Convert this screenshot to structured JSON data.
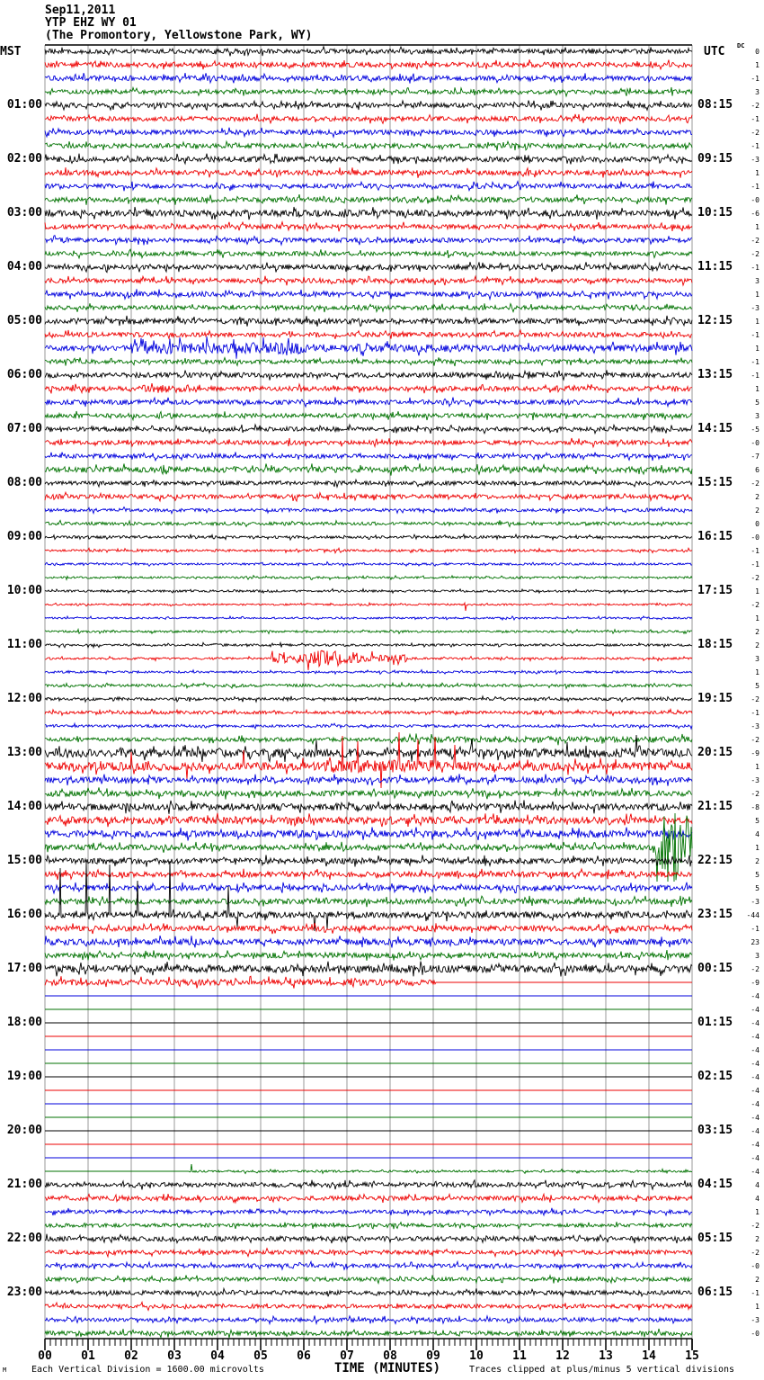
{
  "header": {
    "date": "Sep11,2011",
    "station": "YTP EHZ WY 01",
    "location": "(The Promontory, Yellowstone Park, WY)"
  },
  "left_axis": {
    "label": "MST",
    "times": [
      "01:00",
      "02:00",
      "03:00",
      "04:00",
      "05:00",
      "06:00",
      "07:00",
      "08:00",
      "09:00",
      "10:00",
      "11:00",
      "12:00",
      "13:00",
      "14:00",
      "15:00",
      "16:00",
      "17:00",
      "18:00",
      "19:00",
      "20:00",
      "21:00",
      "22:00",
      "23:00"
    ]
  },
  "right_axis": {
    "label": "UTC",
    "dc_header": "DC",
    "times": [
      "08:15",
      "09:15",
      "10:15",
      "11:15",
      "12:15",
      "13:15",
      "14:15",
      "15:15",
      "16:15",
      "17:15",
      "18:15",
      "19:15",
      "20:15",
      "21:15",
      "22:15",
      "23:15",
      "00:15",
      "01:15",
      "02:15",
      "03:15",
      "04:15",
      "05:15",
      "06:15"
    ],
    "dc_values": [
      "0",
      "1",
      "-1",
      "3",
      "-2",
      "-1",
      "-2",
      "-1",
      "-3",
      "1",
      "-1",
      "-0",
      "-6",
      "1",
      "-2",
      "-2",
      "-1",
      "3",
      "1",
      "-3",
      "1",
      "-1",
      "1",
      "-1",
      "-1",
      "1",
      "5",
      "3",
      "-5",
      "-0",
      "-7",
      "6",
      "-2",
      "2",
      "2",
      "0",
      "-0",
      "-1",
      "-1",
      "-2",
      "1",
      "-2",
      "1",
      "2",
      "2",
      "3",
      "1",
      "5",
      "-2",
      "-1",
      "-3",
      "-2",
      "-9",
      "1",
      "-3",
      "-2",
      "-8",
      "5",
      "4",
      "1",
      "2",
      "5",
      "5",
      "-3",
      "-44",
      "-1",
      "23",
      "3",
      "-2",
      "-9",
      "-4",
      "-4",
      "-4",
      "-4",
      "-4",
      "-4",
      "-4",
      "-4",
      "-4",
      "-4",
      "-4",
      "-4",
      "-4",
      "-4",
      "4",
      "4",
      "1",
      "-2",
      "2",
      "-2",
      "-0",
      "2",
      "-1",
      "1",
      "-3",
      "-0"
    ]
  },
  "x_axis": {
    "title": "TIME (MINUTES)",
    "labels": [
      "00",
      "01",
      "02",
      "03",
      "04",
      "05",
      "06",
      "07",
      "08",
      "09",
      "10",
      "11",
      "12",
      "13",
      "14",
      "15"
    ]
  },
  "footer": {
    "left": "Each Vertical Division = 1600.00 microvolts",
    "right": "Traces clipped at plus/minus 5 vertical divisions",
    "watermark": "M"
  },
  "chart_data": {
    "type": "line",
    "subtype": "seismogram-helicorder",
    "title": "YTP EHZ WY 01 webicorder, Sep11,2011",
    "xlabel": "TIME (MINUTES)",
    "x_range_minutes": [
      0,
      15
    ],
    "minutes_per_line": 15,
    "lines_per_hour": 4,
    "total_traces": 96,
    "grid": true,
    "colors": {
      "k": "#000000",
      "r": "#ee0000",
      "b": "#0000dd",
      "g": "#007200",
      "grid": "#999999"
    },
    "color_cycle_per_trace": [
      "black",
      "red",
      "blue",
      "green"
    ],
    "rows": [
      {
        "c": "k",
        "a": 2.6
      },
      {
        "c": "r",
        "a": 2.8
      },
      {
        "c": "b",
        "a": 2.8
      },
      {
        "c": "g",
        "a": 2.4
      },
      {
        "c": "k",
        "a": 2.6
      },
      {
        "c": "r",
        "a": 2.6
      },
      {
        "c": "b",
        "a": 2.6
      },
      {
        "c": "g",
        "a": 2.6
      },
      {
        "c": "k",
        "a": 3.0
      },
      {
        "c": "r",
        "a": 2.8
      },
      {
        "c": "b",
        "a": 2.6
      },
      {
        "c": "g",
        "a": 2.8
      },
      {
        "c": "k",
        "a": 3.6
      },
      {
        "c": "r",
        "a": 2.6
      },
      {
        "c": "b",
        "a": 2.6
      },
      {
        "c": "g",
        "a": 2.4
      },
      {
        "c": "k",
        "a": 2.8
      },
      {
        "c": "r",
        "a": 2.6
      },
      {
        "c": "b",
        "a": 2.8
      },
      {
        "c": "g",
        "a": 2.4
      },
      {
        "c": "k",
        "a": 3.0
      },
      {
        "c": "r",
        "a": 2.6
      },
      {
        "c": "b",
        "a": 3.0,
        "ev": [
          [
            2.0,
            2.35,
            11
          ],
          [
            2.35,
            6,
            6.5
          ],
          [
            6,
            10,
            4.5
          ],
          [
            10,
            15,
            3.8
          ]
        ]
      },
      {
        "c": "g",
        "a": 2.4
      },
      {
        "c": "k",
        "a": 2.8
      },
      {
        "c": "r",
        "a": 2.6,
        "ev": [
          [
            2.2,
            3.4,
            4.5
          ]
        ]
      },
      {
        "c": "b",
        "a": 2.6
      },
      {
        "c": "g",
        "a": 2.4
      },
      {
        "c": "k",
        "a": 2.4
      },
      {
        "c": "r",
        "a": 2.4
      },
      {
        "c": "b",
        "a": 2.4
      },
      {
        "c": "g",
        "a": 3.2
      },
      {
        "c": "k",
        "a": 2.2
      },
      {
        "c": "r",
        "a": 2.4
      },
      {
        "c": "b",
        "a": 1.8
      },
      {
        "c": "g",
        "a": 1.8
      },
      {
        "c": "k",
        "a": 1.5
      },
      {
        "c": "r",
        "a": 1.3
      },
      {
        "c": "b",
        "a": 1.2
      },
      {
        "c": "g",
        "a": 1.2
      },
      {
        "c": "k",
        "a": 1.2
      },
      {
        "c": "r",
        "a": 1.0,
        "sp": [
          [
            9.75,
            -7
          ]
        ]
      },
      {
        "c": "b",
        "a": 1.0
      },
      {
        "c": "g",
        "a": 1.2
      },
      {
        "c": "k",
        "a": 1.3
      },
      {
        "c": "r",
        "a": 1.2,
        "ev": [
          [
            5.2,
            6.1,
            5
          ],
          [
            6.1,
            7.3,
            9
          ],
          [
            7.3,
            8.4,
            4.2
          ]
        ]
      },
      {
        "c": "b",
        "a": 1.2
      },
      {
        "c": "g",
        "a": 1.6
      },
      {
        "c": "k",
        "a": 1.6
      },
      {
        "c": "r",
        "a": 1.8
      },
      {
        "c": "b",
        "a": 1.5
      },
      {
        "c": "g",
        "a": 2.2,
        "ev": [
          [
            8,
            15,
            3.2
          ]
        ]
      },
      {
        "c": "k",
        "a": 4.8,
        "sp": [
          [
            6.3,
            14
          ],
          [
            9.9,
            16
          ],
          [
            12.1,
            12
          ],
          [
            13.7,
            20
          ]
        ]
      },
      {
        "c": "r",
        "a": 4.6,
        "ev": [
          [
            6.5,
            10,
            7
          ]
        ],
        "sp": [
          [
            2.0,
            16
          ],
          [
            3.3,
            -14
          ],
          [
            4.6,
            18
          ],
          [
            6.9,
            34
          ],
          [
            7.25,
            28
          ],
          [
            7.8,
            -24
          ],
          [
            8.2,
            38
          ],
          [
            8.65,
            30
          ],
          [
            9.05,
            33
          ],
          [
            9.5,
            24
          ]
        ]
      },
      {
        "c": "b",
        "a": 3.2
      },
      {
        "c": "g",
        "a": 3.2
      },
      {
        "c": "k",
        "a": 3.8
      },
      {
        "c": "r",
        "a": 4.0
      },
      {
        "c": "b",
        "a": 3.8
      },
      {
        "c": "g",
        "a": 3.0,
        "ev": [
          [
            14.15,
            15,
            40
          ]
        ]
      },
      {
        "c": "k",
        "a": 3.2
      },
      {
        "c": "r",
        "a": 3.0
      },
      {
        "c": "b",
        "a": 3.0
      },
      {
        "c": "g",
        "a": 3.0
      },
      {
        "c": "k",
        "a": 3.4,
        "sp": [
          [
            0.35,
            52
          ],
          [
            0.95,
            58
          ],
          [
            1.5,
            56
          ],
          [
            2.15,
            38
          ],
          [
            2.9,
            60
          ],
          [
            4.25,
            32
          ],
          [
            4.45,
            -14
          ],
          [
            6.25,
            -18
          ],
          [
            6.55,
            -16
          ]
        ]
      },
      {
        "c": "r",
        "a": 3.0
      },
      {
        "c": "b",
        "a": 3.4
      },
      {
        "c": "g",
        "a": 3.0
      },
      {
        "c": "k",
        "a": 4.0
      },
      {
        "c": "r",
        "a": 3.4,
        "flat": [
          [
            9.05,
            15
          ]
        ]
      },
      {
        "c": "b",
        "a": 0
      },
      {
        "c": "g",
        "a": 0
      },
      {
        "c": "k",
        "a": 0
      },
      {
        "c": "r",
        "a": 0
      },
      {
        "c": "b",
        "a": 0
      },
      {
        "c": "g",
        "a": 0
      },
      {
        "c": "k",
        "a": 0
      },
      {
        "c": "r",
        "a": 0
      },
      {
        "c": "b",
        "a": 0
      },
      {
        "c": "g",
        "a": 0
      },
      {
        "c": "k",
        "a": 0
      },
      {
        "c": "r",
        "a": 0
      },
      {
        "c": "b",
        "a": 0
      },
      {
        "c": "g",
        "a": 1.2,
        "flat": [
          [
            0,
            3.35
          ]
        ],
        "sp": [
          [
            3.4,
            8
          ]
        ]
      },
      {
        "c": "k",
        "a": 2.6
      },
      {
        "c": "r",
        "a": 2.4
      },
      {
        "c": "b",
        "a": 2.0
      },
      {
        "c": "g",
        "a": 2.0
      },
      {
        "c": "k",
        "a": 2.6
      },
      {
        "c": "r",
        "a": 2.4
      },
      {
        "c": "b",
        "a": 2.2
      },
      {
        "c": "g",
        "a": 2.2
      },
      {
        "c": "k",
        "a": 2.4
      },
      {
        "c": "r",
        "a": 2.2
      },
      {
        "c": "b",
        "a": 2.2
      },
      {
        "c": "g",
        "a": 2.4
      }
    ],
    "notes": {
      "amplitude_unit": "vertical divisions of 1600.00 microvolts, clip at +/-5",
      "events_format": "ev:[start_min,end_min,amplitude_px], sp:[minute,spike_height_px], flat:[start_min,end_min]"
    }
  }
}
